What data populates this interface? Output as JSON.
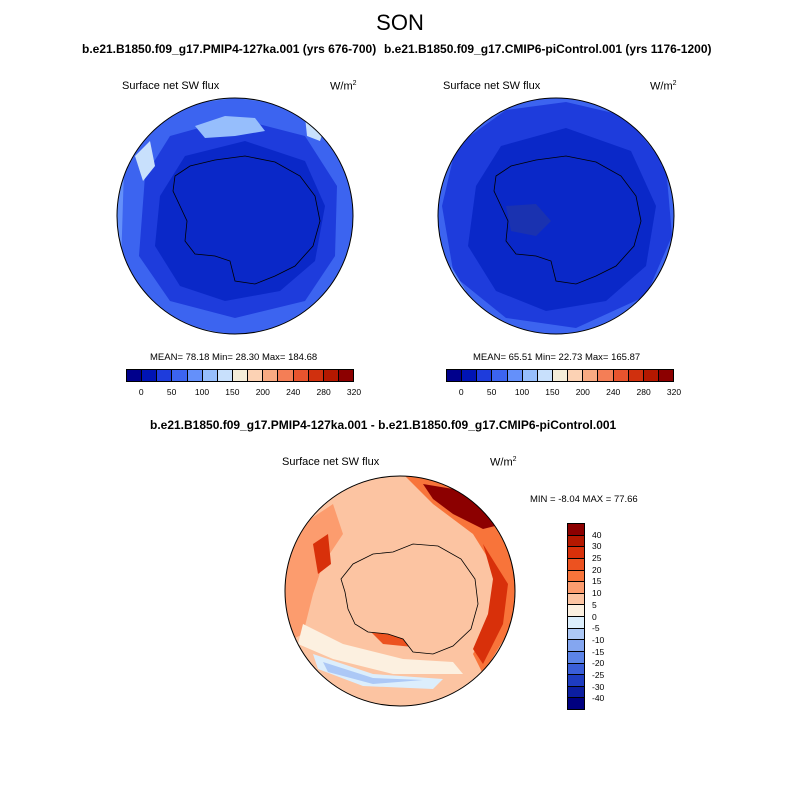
{
  "figure": {
    "season": "SON"
  },
  "panel_left": {
    "title": "b.e21.B1850.f09_g17.PMIP4-127ka.001 (yrs 676-700)",
    "variable": "Surface net SW flux",
    "units_base": "W/m",
    "units_exp": "2",
    "stats": "MEAN=  78.18  Min=  28.30  Max= 184.68"
  },
  "panel_right": {
    "title": "b.e21.B1850.f09_g17.CMIP6-piControl.001 (yrs 1176-1200)",
    "variable": "Surface net SW flux",
    "units_base": "W/m",
    "units_exp": "2",
    "stats": "MEAN=  65.51  Min=  22.73  Max= 165.87"
  },
  "panel_diff": {
    "title": "b.e21.B1850.f09_g17.PMIP4-127ka.001 - b.e21.B1850.f09_g17.CMIP6-piControl.001",
    "variable": "Surface net SW flux",
    "units_base": "W/m",
    "units_exp": "2",
    "stats": "MIN =  -8.04 MAX =  77.66"
  },
  "colorbar_abs": {
    "labels": [
      "0",
      "50",
      "100",
      "150",
      "200",
      "240",
      "280",
      "320"
    ],
    "colors": [
      "#00008c",
      "#0014b4",
      "#1e3cdc",
      "#3c64f0",
      "#6490fa",
      "#96befc",
      "#c8e0fc",
      "#f4ecd8",
      "#fcd2b4",
      "#f8aa82",
      "#f47e56",
      "#e8542e",
      "#d0300e",
      "#b41800",
      "#8c0000"
    ]
  },
  "colorbar_diff": {
    "labels": [
      "40",
      "30",
      "25",
      "20",
      "15",
      "10",
      "5",
      "0",
      "-5",
      "-10",
      "-15",
      "-20",
      "-25",
      "-30",
      "-40"
    ],
    "colors": [
      "#8c0000",
      "#b41800",
      "#d8300a",
      "#ec5220",
      "#f8743a",
      "#fc9c6e",
      "#fcc4a2",
      "#fcf0e0",
      "#dceefc",
      "#acc8f6",
      "#84a6f0",
      "#5c84e8",
      "#3a5ed8",
      "#1e3cc0",
      "#0c1ea0",
      "#000080"
    ]
  }
}
